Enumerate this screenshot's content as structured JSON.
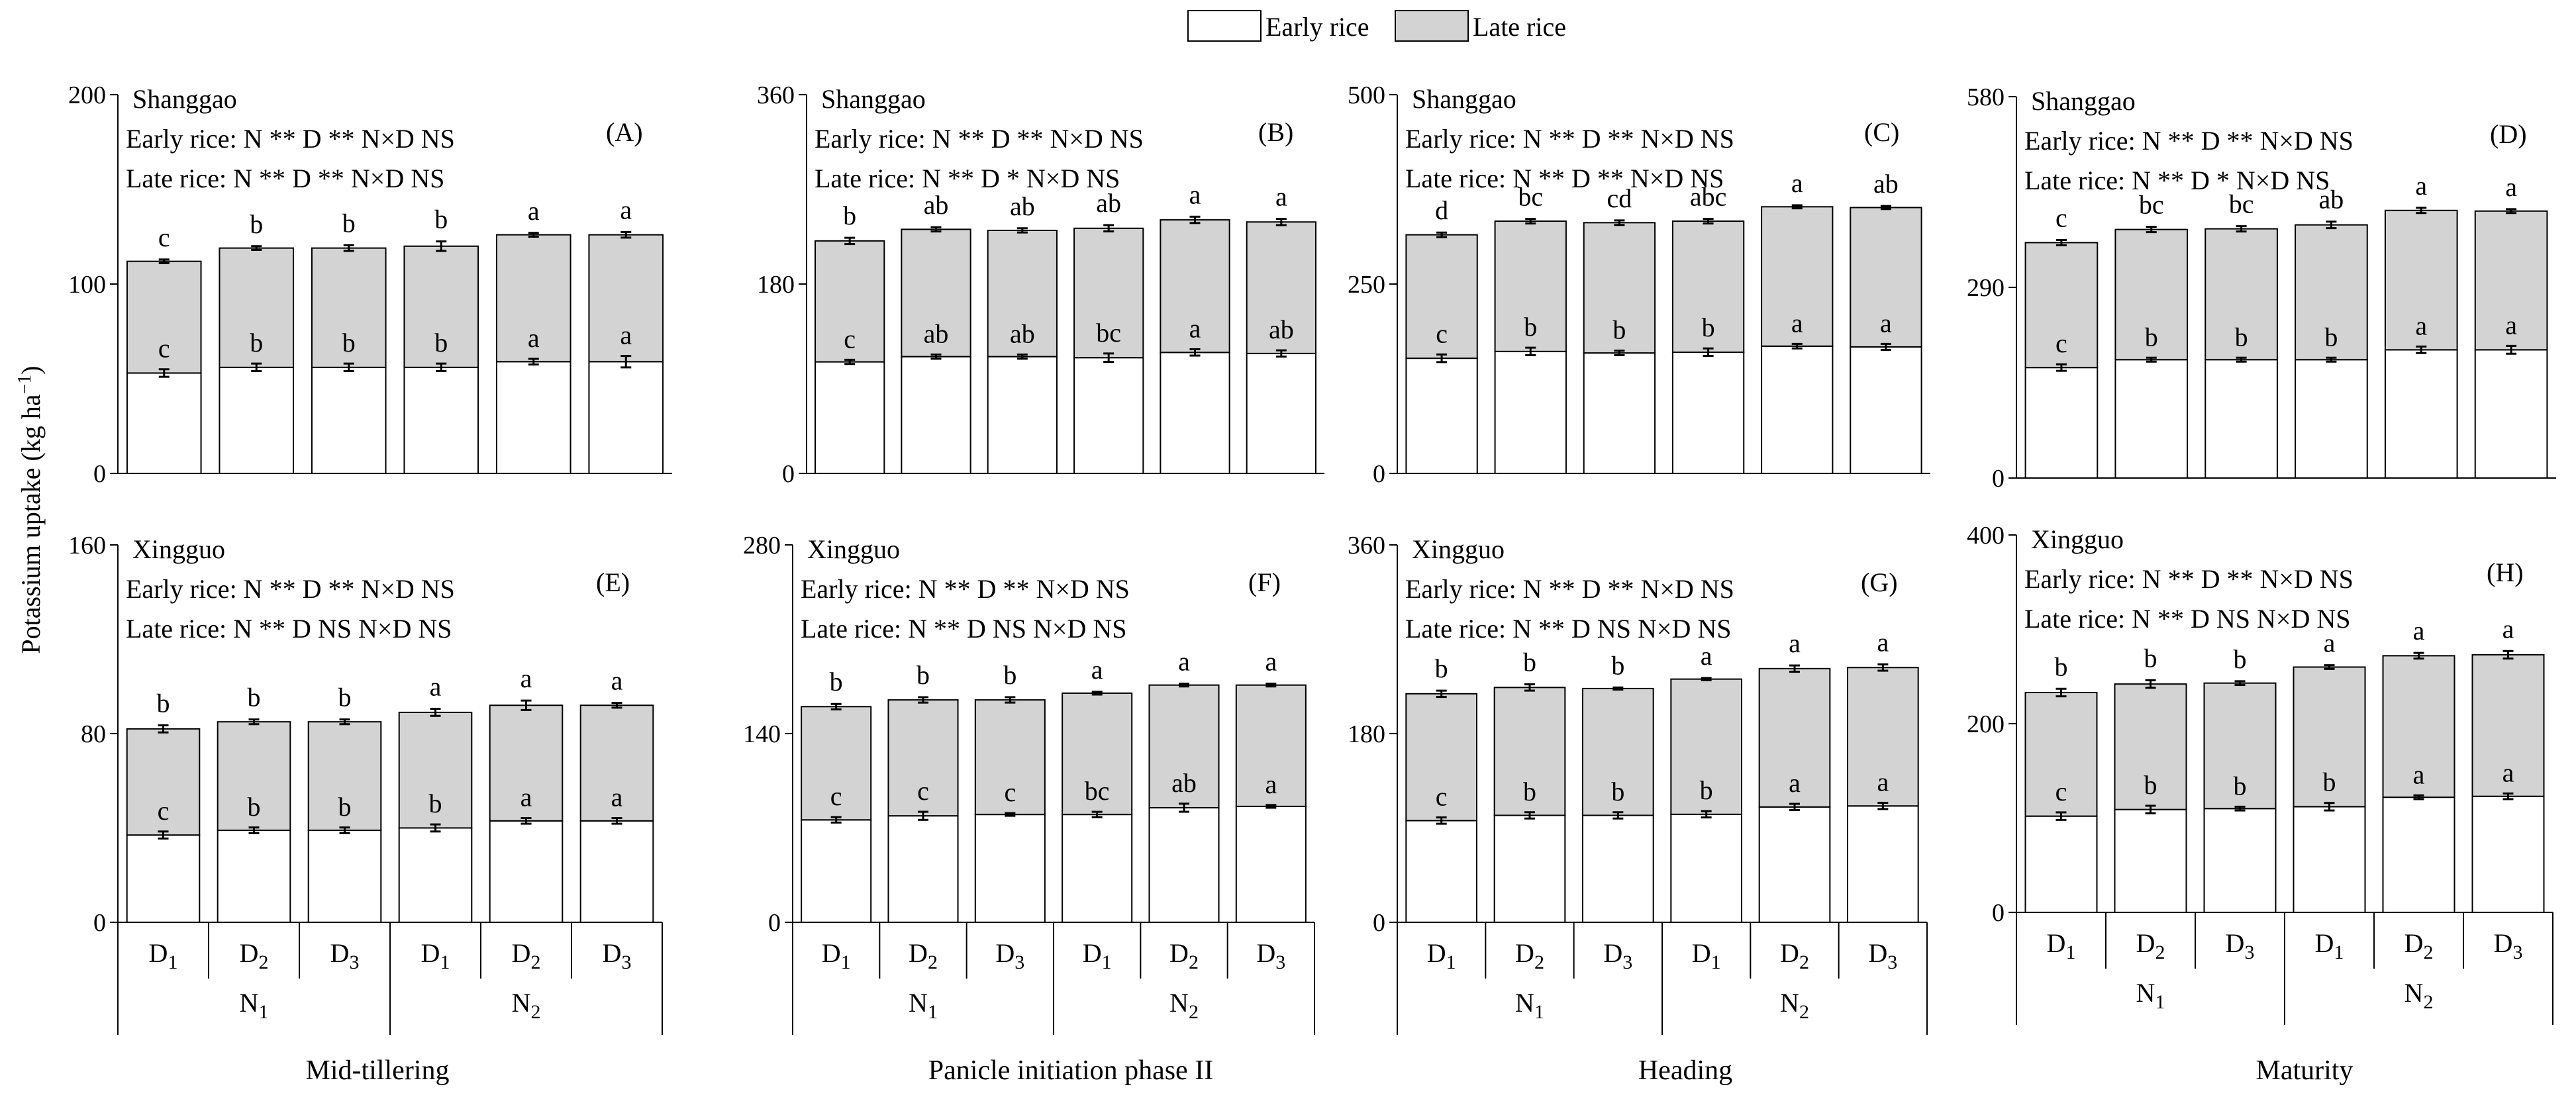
{
  "legend": {
    "items": [
      {
        "label": "Early rice",
        "color": "#ffffff"
      },
      {
        "label": "Late rice",
        "color": "#d3d3d3"
      }
    ]
  },
  "ylabel": {
    "main": "Potassium uptake (kg ha",
    "exp": "−1",
    "close": ")"
  },
  "xaxis": {
    "d_labels": [
      {
        "base": "D",
        "sub": "1"
      },
      {
        "base": "D",
        "sub": "2"
      },
      {
        "base": "D",
        "sub": "3"
      },
      {
        "base": "D",
        "sub": "1"
      },
      {
        "base": "D",
        "sub": "2"
      },
      {
        "base": "D",
        "sub": "3"
      }
    ],
    "n_labels": [
      {
        "base": "N",
        "sub": "1"
      },
      {
        "base": "N",
        "sub": "2"
      }
    ]
  },
  "stages": [
    "Mid-tillering",
    "Panicle initiation phase II",
    "Heading",
    "Maturity"
  ],
  "colors": {
    "early": "#ffffff",
    "late": "#d3d3d3",
    "stroke": "#000000"
  },
  "chart_data": [
    {
      "type": "bar",
      "stacked": true,
      "panel_label": "(A)",
      "site": "Shanggao",
      "stats": [
        "Early rice: N ** D ** N×D NS",
        "Late rice:  N ** D ** N×D NS"
      ],
      "categories": [
        "N1D1",
        "N1D2",
        "N1D3",
        "N2D1",
        "N2D2",
        "N2D3"
      ],
      "ylim": [
        0,
        200
      ],
      "yticks": [
        0,
        100,
        200
      ],
      "series": [
        {
          "name": "Early rice",
          "values": [
            53,
            56,
            56,
            56,
            59,
            59
          ],
          "err": [
            2,
            2,
            2,
            2,
            1.5,
            3
          ],
          "letters": [
            "c",
            "b",
            "b",
            "b",
            "a",
            "a"
          ]
        },
        {
          "name": "Late rice",
          "values": [
            59,
            63,
            63,
            64,
            67,
            67
          ],
          "err": [
            1,
            1,
            1.5,
            2.5,
            1,
            1.5
          ],
          "letters": [
            "c",
            "b",
            "b",
            "b",
            "a",
            "a"
          ]
        }
      ]
    },
    {
      "type": "bar",
      "stacked": true,
      "panel_label": "(B)",
      "site": "Shanggao",
      "stats": [
        "Early rice: N ** D ** N×D NS",
        "Late rice:  N ** D * N×D NS"
      ],
      "categories": [
        "N1D1",
        "N1D2",
        "N1D3",
        "N2D1",
        "N2D2",
        "N2D3"
      ],
      "ylim": [
        0,
        360
      ],
      "yticks": [
        0,
        180,
        360
      ],
      "series": [
        {
          "name": "Early rice",
          "values": [
            106,
            111,
            111,
            110,
            115,
            114
          ],
          "err": [
            2,
            2,
            2,
            4,
            3,
            3
          ],
          "letters": [
            "c",
            "ab",
            "ab",
            "bc",
            "a",
            "ab"
          ]
        },
        {
          "name": "Late rice",
          "values": [
            115,
            121,
            120,
            123,
            126,
            125
          ],
          "err": [
            3,
            2,
            2,
            3,
            3,
            3
          ],
          "letters": [
            "b",
            "ab",
            "ab",
            "ab",
            "a",
            "a"
          ]
        }
      ]
    },
    {
      "type": "bar",
      "stacked": true,
      "panel_label": "(C)",
      "site": "Shanggao",
      "stats": [
        "Early rice: N ** D ** N×D NS",
        "Late rice:  N ** D ** N×D NS"
      ],
      "categories": [
        "N1D1",
        "N1D2",
        "N1D3",
        "N2D1",
        "N2D2",
        "N2D3"
      ],
      "ylim": [
        0,
        500
      ],
      "yticks": [
        0,
        250,
        500
      ],
      "series": [
        {
          "name": "Early rice",
          "values": [
            152,
            161,
            159,
            160,
            168,
            167
          ],
          "err": [
            5,
            5,
            3,
            5,
            3,
            4
          ],
          "letters": [
            "c",
            "b",
            "b",
            "b",
            "a",
            "a"
          ]
        },
        {
          "name": "Late rice",
          "values": [
            163,
            172,
            172,
            173,
            184,
            184
          ],
          "err": [
            3,
            3,
            3,
            3,
            2,
            2
          ],
          "letters": [
            "d",
            "bc",
            "cd",
            "abc",
            "a",
            "ab"
          ]
        }
      ]
    },
    {
      "type": "bar",
      "stacked": true,
      "panel_label": "(D)",
      "site": "Shanggao",
      "stats": [
        "Early rice: N ** D ** N×D NS",
        "Late rice:  N ** D * N×D NS"
      ],
      "categories": [
        "N1D1",
        "N1D2",
        "N1D3",
        "N2D1",
        "N2D2",
        "N2D3"
      ],
      "ylim": [
        0,
        580
      ],
      "yticks": [
        0,
        290,
        580
      ],
      "series": [
        {
          "name": "Early rice",
          "values": [
            168,
            180,
            180,
            180,
            195,
            195
          ],
          "err": [
            5,
            3,
            3,
            3,
            5,
            6
          ],
          "letters": [
            "c",
            "b",
            "b",
            "b",
            "a",
            "a"
          ]
        },
        {
          "name": "Late rice",
          "values": [
            190,
            198,
            199,
            205,
            212,
            211
          ],
          "err": [
            4,
            4,
            4,
            5,
            4,
            3
          ],
          "letters": [
            "c",
            "bc",
            "bc",
            "ab",
            "a",
            "a"
          ]
        }
      ]
    },
    {
      "type": "bar",
      "stacked": true,
      "panel_label": "(E)",
      "site": "Xingguo",
      "stats": [
        "Early rice: N ** D ** N×D NS",
        "Late rice:  N ** D NS N×D NS"
      ],
      "categories": [
        "N1D1",
        "N1D2",
        "N1D3",
        "N2D1",
        "N2D2",
        "N2D3"
      ],
      "ylim": [
        0,
        160
      ],
      "yticks": [
        0,
        80,
        160
      ],
      "series": [
        {
          "name": "Early rice",
          "values": [
            37,
            39,
            39,
            40,
            43,
            43
          ],
          "err": [
            1.5,
            1.2,
            1.2,
            1.5,
            1.2,
            1.2
          ],
          "letters": [
            "c",
            "b",
            "b",
            "b",
            "a",
            "a"
          ]
        },
        {
          "name": "Late rice",
          "values": [
            45,
            46,
            46,
            49,
            49,
            49
          ],
          "err": [
            1.5,
            1,
            1,
            1.5,
            2,
            1
          ],
          "letters": [
            "b",
            "b",
            "b",
            "a",
            "a",
            "a"
          ]
        }
      ]
    },
    {
      "type": "bar",
      "stacked": true,
      "panel_label": "(F)",
      "site": "Xingguo",
      "stats": [
        "Early rice: N ** D ** N×D NS",
        "Late rice:  N ** D NS N×D NS"
      ],
      "categories": [
        "N1D1",
        "N1D2",
        "N1D3",
        "N2D1",
        "N2D2",
        "N2D3"
      ],
      "ylim": [
        0,
        280
      ],
      "yticks": [
        0,
        140,
        280
      ],
      "series": [
        {
          "name": "Early rice",
          "values": [
            76,
            79,
            80,
            80,
            85,
            86
          ],
          "err": [
            2,
            3,
            1,
            2,
            3,
            1
          ],
          "letters": [
            "c",
            "c",
            "c",
            "bc",
            "ab",
            "a"
          ]
        },
        {
          "name": "Late rice",
          "values": [
            84,
            86,
            85,
            90,
            91,
            90
          ],
          "err": [
            2,
            2,
            2,
            1,
            1,
            1
          ],
          "letters": [
            "b",
            "b",
            "b",
            "a",
            "a",
            "a"
          ]
        }
      ]
    },
    {
      "type": "bar",
      "stacked": true,
      "panel_label": "(G)",
      "site": "Xingguo",
      "stats": [
        "Early rice: N ** D ** N×D NS",
        "Late rice:  N ** D NS N×D NS"
      ],
      "categories": [
        "N1D1",
        "N1D2",
        "N1D3",
        "N2D1",
        "N2D2",
        "N2D3"
      ],
      "ylim": [
        0,
        360
      ],
      "yticks": [
        0,
        180,
        360
      ],
      "series": [
        {
          "name": "Early rice",
          "values": [
            97,
            102,
            102,
            103,
            110,
            111
          ],
          "err": [
            3,
            3,
            3,
            3,
            3,
            3
          ],
          "letters": [
            "c",
            "b",
            "b",
            "b",
            "a",
            "a"
          ]
        },
        {
          "name": "Late rice",
          "values": [
            121,
            122,
            121,
            129,
            132,
            132
          ],
          "err": [
            3,
            3,
            1,
            1,
            3,
            3
          ],
          "letters": [
            "b",
            "b",
            "b",
            "a",
            "a",
            "a"
          ]
        }
      ]
    },
    {
      "type": "bar",
      "stacked": true,
      "panel_label": "(H)",
      "site": "Xingguo",
      "stats": [
        "Early rice: N ** D ** N×D NS",
        "Late rice:  N ** D NS N×D NS"
      ],
      "categories": [
        "N1D1",
        "N1D2",
        "N1D3",
        "N2D1",
        "N2D2",
        "N2D3"
      ],
      "ylim": [
        0,
        400
      ],
      "yticks": [
        0,
        200,
        400
      ],
      "series": [
        {
          "name": "Early rice",
          "values": [
            102,
            109,
            110,
            112,
            122,
            123
          ],
          "err": [
            4,
            4,
            2,
            4,
            2,
            3
          ],
          "letters": [
            "c",
            "b",
            "b",
            "b",
            "a",
            "a"
          ]
        },
        {
          "name": "Late rice",
          "values": [
            131,
            133,
            133,
            148,
            150,
            150
          ],
          "err": [
            4,
            4,
            2,
            2,
            3,
            4
          ],
          "letters": [
            "b",
            "b",
            "b",
            "a",
            "a",
            "a"
          ]
        }
      ]
    }
  ]
}
